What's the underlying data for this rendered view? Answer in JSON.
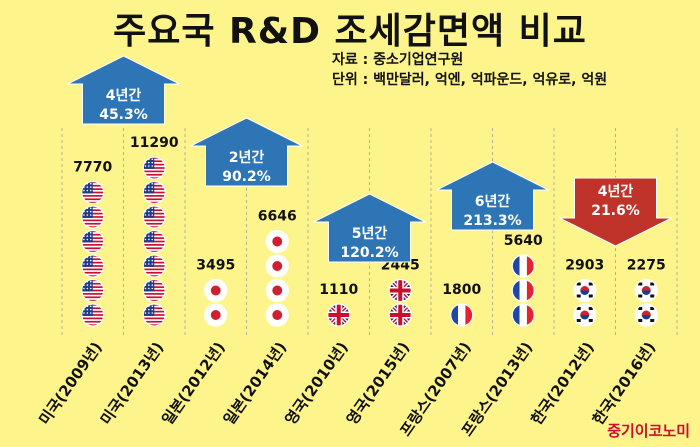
{
  "title": "주요국 R&D 조세감면액 비교",
  "source_text": "자료 : 중소기업연구원",
  "unit_text": "단위 : 백만달러, 억엔, 억파운드, 억유로, 억원",
  "credit": "중기이코노미",
  "chart_data": {
    "type": "bar",
    "categories": [
      "미국(2009년)",
      "미국(2013년)",
      "일본(2012년)",
      "일본(2014년)",
      "영국(2010년)",
      "영국(2015년)",
      "프랑스(2007년)",
      "프랑스(2013년)",
      "한국(2012년)",
      "한국(2016년)"
    ],
    "values": [
      7770,
      11290,
      3495,
      6646,
      1110,
      2445,
      1800,
      5640,
      2903,
      2275
    ],
    "value_labels": [
      "7770",
      "11290",
      "3495",
      "6646",
      "1110",
      "2445",
      "1800",
      "5640",
      "2903",
      "2275"
    ],
    "markers": [
      "us",
      "us",
      "jp",
      "jp",
      "uk",
      "uk",
      "fr",
      "fr",
      "kr",
      "kr"
    ],
    "marker_counts": [
      6,
      7,
      2,
      4,
      1,
      2,
      1,
      3,
      2,
      2
    ],
    "changes": [
      {
        "period": "4년간",
        "pct": "45.3%",
        "direction": "up",
        "color": "#2e75b6"
      },
      {
        "period": "2년간",
        "pct": "90.2%",
        "direction": "up",
        "color": "#2e75b6"
      },
      {
        "period": "5년간",
        "pct": "120.2%",
        "direction": "up",
        "color": "#2e75b6"
      },
      {
        "period": "6년간",
        "pct": "213.3%",
        "direction": "up",
        "color": "#2e75b6"
      },
      {
        "period": "4년간",
        "pct": "21.6%",
        "direction": "down",
        "color": "#c0332b"
      }
    ],
    "grid": "vertical-dashed",
    "colors": {
      "background": "#fdf48c",
      "up_arrow": "#2e75b6",
      "down_arrow": "#c0332b",
      "credit": "#c8102e"
    }
  }
}
